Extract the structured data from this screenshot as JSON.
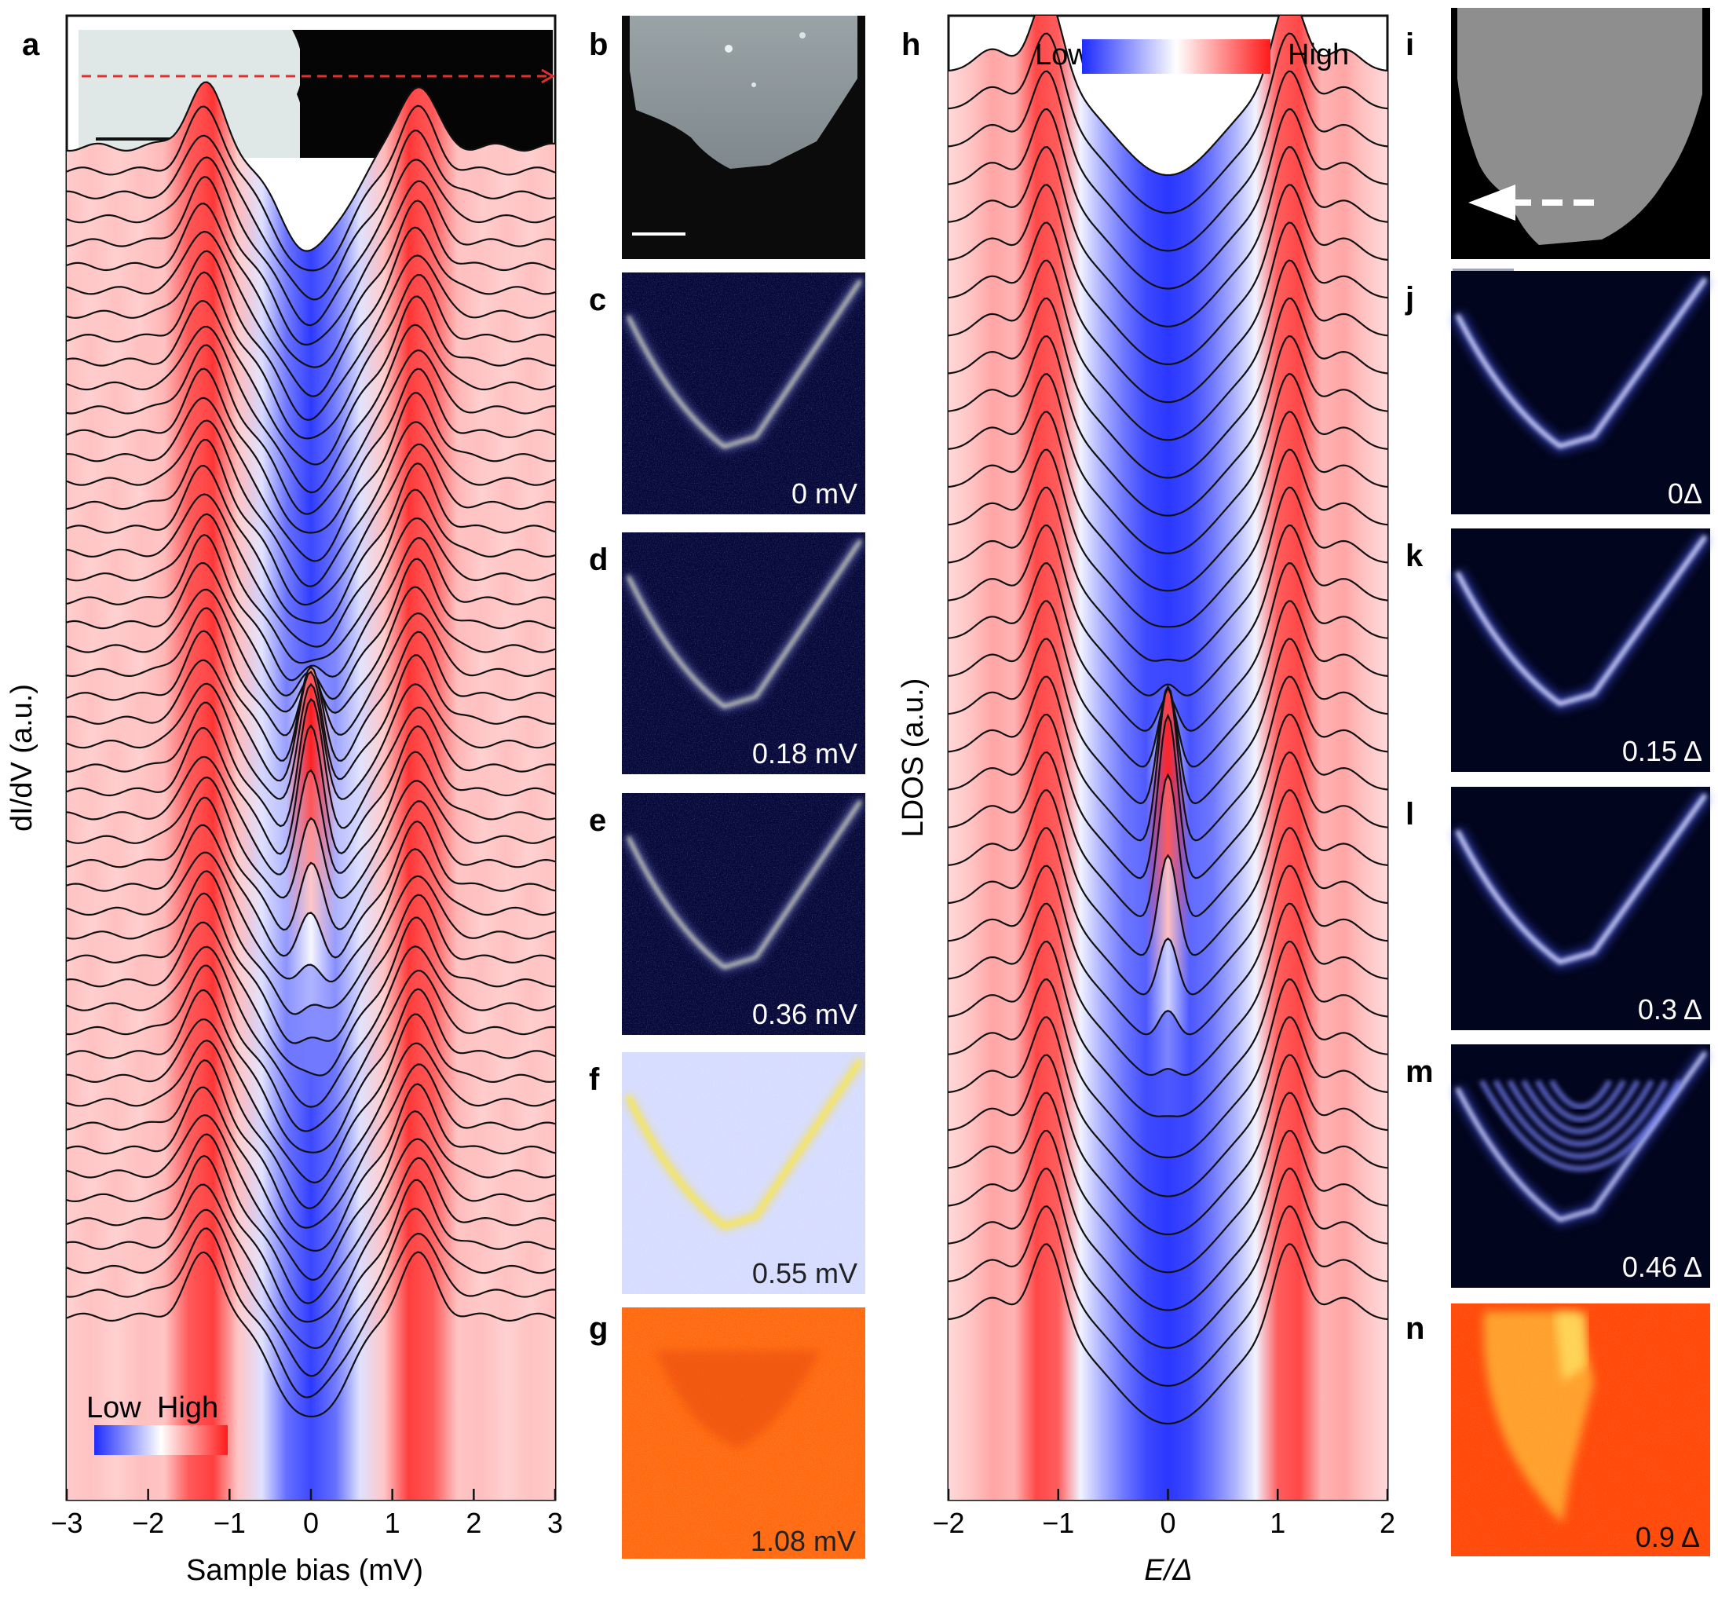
{
  "panels": {
    "a": {
      "label": "a",
      "ylabel": "dI/dV (a.u.)",
      "xlabel": "Sample bias (mV)",
      "xticks": [
        "−3",
        "−2",
        "−1",
        "0",
        "1",
        "2",
        "3"
      ],
      "legend_low": "Low",
      "legend_high": "High"
    },
    "b": {
      "label": "b"
    },
    "c": {
      "label": "c",
      "energy": "0 mV"
    },
    "d": {
      "label": "d",
      "energy": "0.18 mV"
    },
    "e": {
      "label": "e",
      "energy": "0.36 mV"
    },
    "f": {
      "label": "f",
      "energy": "0.55 mV"
    },
    "g": {
      "label": "g",
      "energy": "1.08 mV"
    },
    "h": {
      "label": "h",
      "ylabel": "LDOS (a.u.)",
      "xlabel": "E/Δ",
      "xticks": [
        "−2",
        "−1",
        "0",
        "1",
        "2"
      ],
      "legend_low": "Low",
      "legend_high": "High"
    },
    "i": {
      "label": "i"
    },
    "j": {
      "label": "j",
      "energy": "0Δ"
    },
    "k": {
      "label": "k",
      "energy": "0.15 Δ"
    },
    "l": {
      "label": "l",
      "energy": "0.3 Δ"
    },
    "m": {
      "label": "m",
      "energy": "0.46 Δ"
    },
    "n": {
      "label": "n",
      "energy": "0.9 Δ"
    }
  },
  "colors": {
    "low": "#1d2bff",
    "mid": "#ffffff",
    "high": "#ff1a1a",
    "line": "#111111",
    "orange": "#ff6a00"
  },
  "chart_data": [
    {
      "type": "line",
      "panel": "a",
      "xlabel": "Sample bias (mV)",
      "ylabel": "dI/dV (a.u.)",
      "xlim": [
        -3,
        3
      ],
      "xticks": [
        -3,
        -2,
        -1,
        0,
        1,
        2,
        3
      ],
      "n_curves": 50,
      "coherence_peak_positions_mV": [
        -1.3,
        1.3
      ],
      "zero_bias_peak_position_mV": 0,
      "colormap": "Low-High (blue-white-red)"
    },
    {
      "type": "line",
      "panel": "h",
      "xlabel": "E/Δ",
      "ylabel": "LDOS (a.u.)",
      "xlim": [
        -2,
        2
      ],
      "xticks": [
        -2,
        -1,
        0,
        1,
        2
      ],
      "n_curves": 34,
      "coherence_peak_positions": [
        -1.1,
        1.1
      ],
      "zero_energy_peak_position": 0,
      "colormap": "Low-High (blue-white-red)"
    }
  ]
}
